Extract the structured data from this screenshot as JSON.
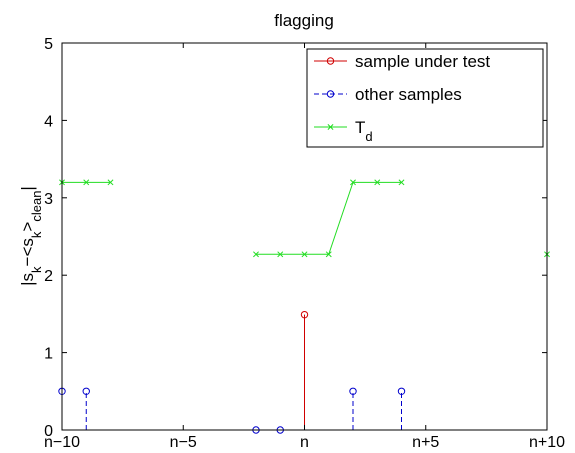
{
  "chart_data": {
    "type": "stem",
    "title": "flagging",
    "xlabel": "",
    "ylabel": "|s_k−<s_k>_clean|",
    "xlim": [
      -10,
      10
    ],
    "ylim": [
      0,
      5
    ],
    "xticks": [
      {
        "value": -10,
        "label": "n−10"
      },
      {
        "value": -5,
        "label": "n−5"
      },
      {
        "value": 0,
        "label": "n"
      },
      {
        "value": 5,
        "label": "n+5"
      },
      {
        "value": 10,
        "label": "n+10"
      }
    ],
    "yticks": [
      {
        "value": 0,
        "label": "0"
      },
      {
        "value": 1,
        "label": "1"
      },
      {
        "value": 2,
        "label": "2"
      },
      {
        "value": 3,
        "label": "3"
      },
      {
        "value": 4,
        "label": "4"
      },
      {
        "value": 5,
        "label": "5"
      }
    ],
    "grid": false,
    "legend_position": "top-right",
    "series": [
      {
        "name": "sample under test",
        "style": "stem-solid-circle",
        "color": "#d00000",
        "points": [
          {
            "x": 0,
            "y": 1.49
          }
        ]
      },
      {
        "name": "other samples",
        "style": "stem-dashed-circle",
        "color": "#0000cc",
        "points": [
          {
            "x": -10,
            "y": 0.5
          },
          {
            "x": -9,
            "y": 0.5
          },
          {
            "x": -2,
            "y": 0
          },
          {
            "x": -1,
            "y": 0
          },
          {
            "x": 2,
            "y": 0.5
          },
          {
            "x": 4,
            "y": 0.5
          }
        ]
      },
      {
        "name": "T_d",
        "style": "line-x-marker",
        "color": "#22dd22",
        "segments": [
          [
            {
              "x": -10,
              "y": 3.2
            },
            {
              "x": -9,
              "y": 3.2
            },
            {
              "x": -8,
              "y": 3.2
            }
          ],
          [
            {
              "x": -2,
              "y": 2.27
            },
            {
              "x": -1,
              "y": 2.27
            },
            {
              "x": 0,
              "y": 2.27
            },
            {
              "x": 1,
              "y": 2.27
            },
            {
              "x": 2,
              "y": 3.2
            },
            {
              "x": 3,
              "y": 3.2
            },
            {
              "x": 4,
              "y": 3.2
            }
          ],
          [
            {
              "x": 10,
              "y": 2.27
            }
          ]
        ]
      }
    ]
  }
}
